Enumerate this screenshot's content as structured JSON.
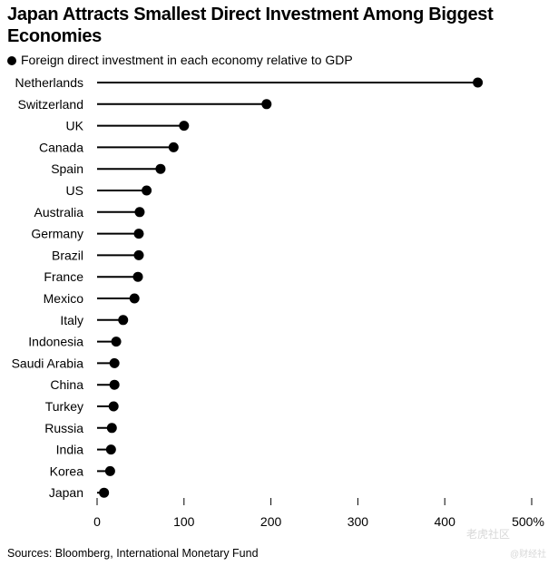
{
  "title": "Japan Attracts Smallest Direct Investment Among Biggest Economies",
  "legend": "Foreign direct investment in each economy relative to GDP",
  "source": "Sources: Bloomberg, International Monetary Fund",
  "watermark": "老虎社区",
  "watermark_sub": "@财经社",
  "chart_data": {
    "type": "lollipop",
    "title": "Japan Attracts Smallest Direct Investment Among Biggest Economies",
    "series": [
      {
        "name": "Foreign direct investment in each economy relative to GDP",
        "values": [
          438,
          195,
          100,
          88,
          73,
          57,
          49,
          48,
          48,
          47,
          43,
          30,
          22,
          20,
          20,
          19,
          17,
          16,
          15,
          8
        ]
      }
    ],
    "categories": [
      "Netherlands",
      "Switzerland",
      "UK",
      "Canada",
      "Spain",
      "US",
      "Australia",
      "Germany",
      "Brazil",
      "France",
      "Mexico",
      "Italy",
      "Indonesia",
      "Saudi Arabia",
      "China",
      "Turkey",
      "Russia",
      "India",
      "Korea",
      "Japan"
    ],
    "xlim": [
      0,
      500
    ],
    "xticks": [
      0,
      100,
      200,
      300,
      400,
      500
    ],
    "xtick_labels": [
      "0",
      "100",
      "200",
      "300",
      "400",
      "500%"
    ],
    "colors": {
      "marker": "#000000"
    },
    "grid": false,
    "legend_position": "top-left"
  }
}
